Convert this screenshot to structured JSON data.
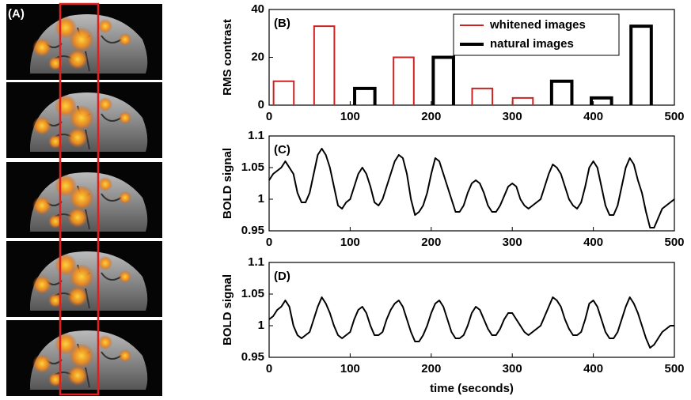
{
  "panel_a": {
    "label": "(A)"
  },
  "chart_data": [
    {
      "type": "bar",
      "annotation": "(B)",
      "ylabel": "RMS contrast",
      "x": [
        18,
        68,
        118,
        166,
        215,
        263,
        313,
        361,
        410,
        459
      ],
      "series": [
        {
          "name": "whitened images",
          "color": "#cc2222",
          "line_width": 2,
          "values": [
            10,
            33,
            null,
            20,
            null,
            7,
            3,
            null,
            null,
            null
          ]
        },
        {
          "name": "natural images",
          "color": "#000000",
          "line_width": 4,
          "values": [
            null,
            null,
            7,
            null,
            20,
            null,
            null,
            10,
            3,
            33
          ]
        }
      ],
      "xlim": [
        0,
        500
      ],
      "xticks": [
        0,
        100,
        200,
        300,
        400,
        500
      ],
      "ylim": [
        0,
        40
      ],
      "yticks": [
        0,
        20,
        40
      ],
      "legend": "upper right",
      "grid": false
    },
    {
      "type": "line",
      "annotation": "(C)",
      "ylabel": "BOLD signal",
      "color": "#000000",
      "x": [
        0,
        5,
        10,
        15,
        20,
        25,
        30,
        35,
        40,
        45,
        50,
        55,
        60,
        65,
        70,
        75,
        80,
        85,
        90,
        95,
        100,
        105,
        110,
        115,
        120,
        125,
        130,
        135,
        140,
        145,
        150,
        155,
        160,
        165,
        170,
        175,
        180,
        185,
        190,
        195,
        200,
        205,
        210,
        215,
        220,
        225,
        230,
        235,
        240,
        245,
        250,
        255,
        260,
        265,
        270,
        275,
        280,
        285,
        290,
        295,
        300,
        305,
        310,
        315,
        320,
        325,
        330,
        335,
        340,
        345,
        350,
        355,
        360,
        365,
        370,
        375,
        380,
        385,
        390,
        395,
        400,
        405,
        410,
        415,
        420,
        425,
        430,
        435,
        440,
        445,
        450,
        455,
        460,
        465,
        470,
        475,
        480,
        485,
        490,
        495,
        500
      ],
      "values": [
        1.03,
        1.04,
        1.045,
        1.05,
        1.06,
        1.05,
        1.04,
        1.01,
        0.995,
        0.995,
        1.01,
        1.04,
        1.07,
        1.08,
        1.07,
        1.05,
        1.02,
        0.99,
        0.985,
        0.995,
        1.0,
        1.02,
        1.04,
        1.05,
        1.04,
        1.02,
        0.995,
        0.99,
        1.0,
        1.02,
        1.04,
        1.06,
        1.07,
        1.065,
        1.04,
        1.0,
        0.975,
        0.98,
        0.99,
        1.01,
        1.04,
        1.065,
        1.06,
        1.04,
        1.02,
        1.0,
        0.98,
        0.98,
        0.99,
        1.01,
        1.025,
        1.03,
        1.025,
        1.01,
        0.99,
        0.98,
        0.98,
        0.99,
        1.005,
        1.02,
        1.025,
        1.02,
        1.0,
        0.99,
        0.985,
        0.99,
        0.995,
        1.0,
        1.02,
        1.04,
        1.055,
        1.05,
        1.04,
        1.02,
        1.0,
        0.99,
        0.985,
        0.995,
        1.02,
        1.05,
        1.06,
        1.05,
        1.02,
        0.99,
        0.975,
        0.975,
        0.99,
        1.02,
        1.05,
        1.065,
        1.055,
        1.03,
        1.01,
        0.98,
        0.955,
        0.955,
        0.97,
        0.985,
        0.99,
        0.995,
        1.0
      ],
      "xlim": [
        0,
        500
      ],
      "xticks": [
        0,
        100,
        200,
        300,
        400,
        500
      ],
      "ylim": [
        0.95,
        1.1
      ],
      "yticks": [
        0.95,
        1,
        1.05,
        1.1
      ],
      "grid": false
    },
    {
      "type": "line",
      "annotation": "(D)",
      "ylabel": "BOLD signal",
      "xlabel": "time (seconds)",
      "color": "#000000",
      "x": [
        0,
        5,
        10,
        15,
        20,
        25,
        30,
        35,
        40,
        45,
        50,
        55,
        60,
        65,
        70,
        75,
        80,
        85,
        90,
        95,
        100,
        105,
        110,
        115,
        120,
        125,
        130,
        135,
        140,
        145,
        150,
        155,
        160,
        165,
        170,
        175,
        180,
        185,
        190,
        195,
        200,
        205,
        210,
        215,
        220,
        225,
        230,
        235,
        240,
        245,
        250,
        255,
        260,
        265,
        270,
        275,
        280,
        285,
        290,
        295,
        300,
        305,
        310,
        315,
        320,
        325,
        330,
        335,
        340,
        345,
        350,
        355,
        360,
        365,
        370,
        375,
        380,
        385,
        390,
        395,
        400,
        405,
        410,
        415,
        420,
        425,
        430,
        435,
        440,
        445,
        450,
        455,
        460,
        465,
        470,
        475,
        480,
        485,
        490,
        495,
        500
      ],
      "values": [
        1.01,
        1.015,
        1.025,
        1.03,
        1.04,
        1.03,
        1.0,
        0.985,
        0.98,
        0.985,
        0.99,
        1.01,
        1.03,
        1.045,
        1.035,
        1.02,
        1.0,
        0.985,
        0.98,
        0.985,
        0.99,
        1.01,
        1.025,
        1.03,
        1.02,
        1.0,
        0.985,
        0.985,
        0.99,
        1.01,
        1.025,
        1.035,
        1.04,
        1.03,
        1.01,
        0.99,
        0.975,
        0.975,
        0.985,
        1.0,
        1.02,
        1.035,
        1.04,
        1.03,
        1.01,
        0.99,
        0.98,
        0.98,
        0.985,
        1.0,
        1.02,
        1.03,
        1.025,
        1.01,
        0.995,
        0.985,
        0.985,
        0.995,
        1.01,
        1.02,
        1.02,
        1.01,
        1.0,
        0.99,
        0.985,
        0.99,
        0.995,
        1.0,
        1.015,
        1.03,
        1.045,
        1.04,
        1.03,
        1.01,
        0.995,
        0.985,
        0.985,
        0.99,
        1.01,
        1.035,
        1.04,
        1.03,
        1.01,
        0.99,
        0.98,
        0.98,
        0.99,
        1.01,
        1.03,
        1.045,
        1.035,
        1.02,
        1.0,
        0.98,
        0.965,
        0.97,
        0.98,
        0.99,
        0.995,
        1.0,
        1.0
      ],
      "xlim": [
        0,
        500
      ],
      "xticks": [
        0,
        100,
        200,
        300,
        400,
        500
      ],
      "ylim": [
        0.95,
        1.1
      ],
      "yticks": [
        0.95,
        1,
        1.05,
        1.1
      ],
      "grid": false
    }
  ]
}
